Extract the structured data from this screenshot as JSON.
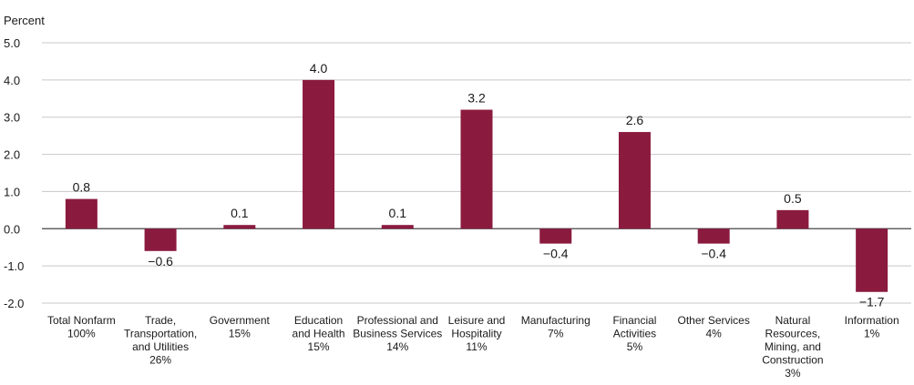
{
  "chart_data": {
    "type": "bar",
    "ylabel": "Percent",
    "ylim": [
      -2.0,
      5.0
    ],
    "yticks": [
      "5.0",
      "4.0",
      "3.0",
      "2.0",
      "1.0",
      "0.0",
      "-1.0",
      "-2.0"
    ],
    "grid": true,
    "bar_color": "#8b1a3f",
    "categories": [
      [
        "Total Nonfarm",
        "100%"
      ],
      [
        "Trade,",
        "Transportation,",
        "and Utilities",
        "26%"
      ],
      [
        "Government",
        "15%"
      ],
      [
        "Education",
        "and Health",
        "15%"
      ],
      [
        "Professional and",
        "Business Services",
        "14%"
      ],
      [
        "Leisure and",
        "Hospitality",
        "11%"
      ],
      [
        "Manufacturing",
        "7%"
      ],
      [
        "Financial",
        "Activities",
        "5%"
      ],
      [
        "Other Services",
        "4%"
      ],
      [
        "Natural",
        "Resources,",
        "Mining, and",
        "Construction",
        "3%"
      ],
      [
        "Information",
        "1%"
      ]
    ],
    "values": [
      0.8,
      -0.6,
      0.1,
      4.0,
      0.1,
      3.2,
      -0.4,
      2.6,
      -0.4,
      0.5,
      -1.7
    ],
    "data_labels": [
      "0.8",
      "−0.6",
      "0.1",
      "4.0",
      "0.1",
      "3.2",
      "−0.4",
      "2.6",
      "−0.4",
      "0.5",
      "−1.7"
    ]
  }
}
